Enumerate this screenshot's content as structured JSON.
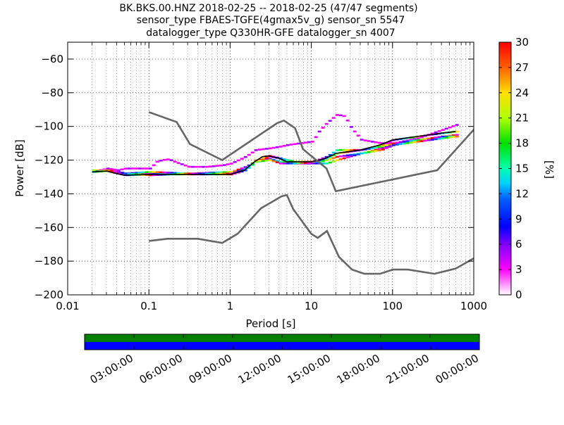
{
  "title_lines": [
    "BK.BKS.00.HNZ   2018-02-25 -- 2018-02-25  (47/47 segments)",
    "sensor_type FBAES-TGFE(4gmax5v_g) sensor_sn 5547",
    "datalogger_type Q330HR-GFE datalogger_sn 4007"
  ],
  "chart_data": [
    {
      "type": "heatmap",
      "title": "BK.BKS.00.HNZ   2018-02-25 -- 2018-02-25  (47/47 segments)",
      "xlabel": "Period [s]",
      "ylabel": "Power [dB]",
      "xscale": "log",
      "xlim": [
        0.01,
        1000
      ],
      "ylim": [
        -200,
        -50
      ],
      "x_ticks": [
        "0.01",
        "0.1",
        "1",
        "10",
        "100",
        "1000"
      ],
      "x_tick_values": [
        0.01,
        0.1,
        1,
        10,
        100,
        1000
      ],
      "y_ticks": [
        "−60",
        "−80",
        "−100",
        "−120",
        "−140",
        "−160",
        "−180",
        "−200"
      ],
      "y_tick_values": [
        -60,
        -80,
        -100,
        -120,
        -140,
        -160,
        -180,
        -200
      ],
      "grid": true,
      "colorbar": {
        "label": "[%]",
        "range": [
          0,
          30
        ],
        "ticks": [
          "0",
          "3",
          "6",
          "9",
          "12",
          "15",
          "18",
          "21",
          "24",
          "27",
          "30"
        ],
        "tick_values": [
          0,
          3,
          6,
          9,
          12,
          15,
          18,
          21,
          24,
          27,
          30
        ]
      },
      "noise_models": [
        {
          "points": [
            [
              0.1,
              -91.5
            ],
            [
              0.22,
              -97.4
            ],
            [
              0.32,
              -110.5
            ],
            [
              0.8,
              -120
            ],
            [
              3.8,
              -98
            ],
            [
              4.6,
              -96.5
            ],
            [
              6.3,
              -101
            ],
            [
              7.9,
              -113.5
            ],
            [
              15.4,
              -125
            ],
            [
              20,
              -138.5
            ],
            [
              354.8,
              -126
            ],
            [
              10000,
              -48.5
            ]
          ]
        },
        {
          "points": [
            [
              0.1,
              -168
            ],
            [
              0.17,
              -166.7
            ],
            [
              0.4,
              -166.7
            ],
            [
              0.8,
              -169.2
            ],
            [
              1.24,
              -163.7
            ],
            [
              2.4,
              -148.6
            ],
            [
              4.3,
              -141.5
            ],
            [
              5,
              -140.7
            ],
            [
              6,
              -149.2
            ],
            [
              10,
              -163.8
            ],
            [
              12,
              -166.2
            ],
            [
              15.6,
              -162.1
            ],
            [
              21.9,
              -177.5
            ],
            [
              31.6,
              -185
            ],
            [
              45,
              -187.5
            ],
            [
              70,
              -187.5
            ],
            [
              101,
              -185
            ],
            [
              154,
              -185
            ],
            [
              328,
              -187.5
            ],
            [
              600,
              -184.4
            ],
            [
              1000,
              -178.3
            ]
          ]
        }
      ],
      "psd_traces": [
        {
          "points": [
            [
              0.02,
              -127
            ],
            [
              0.03,
              -126.5
            ],
            [
              0.04,
              -128
            ],
            [
              0.05,
              -129
            ],
            [
              0.1,
              -128.5
            ],
            [
              0.3,
              -128.5
            ],
            [
              1,
              -128.5
            ],
            [
              1.5,
              -126
            ],
            [
              2,
              -121
            ],
            [
              2.5,
              -118
            ],
            [
              3,
              -117.5
            ],
            [
              4,
              -119
            ],
            [
              5,
              -121
            ],
            [
              7,
              -121
            ],
            [
              10,
              -121
            ],
            [
              15,
              -119
            ],
            [
              20,
              -116
            ],
            [
              40,
              -114
            ],
            [
              70,
              -111
            ],
            [
              100,
              -108
            ],
            [
              200,
              -106
            ],
            [
              400,
              -104
            ],
            [
              600,
              -103
            ]
          ]
        },
        {
          "points": [
            [
              0.02,
              -126
            ],
            [
              0.03,
              -126
            ],
            [
              0.04,
              -127
            ],
            [
              0.05,
              -128
            ],
            [
              0.1,
              -128
            ],
            [
              0.3,
              -128
            ],
            [
              1,
              -127.5
            ],
            [
              1.5,
              -124.5
            ],
            [
              2,
              -120
            ],
            [
              3,
              -119.5
            ],
            [
              4,
              -121
            ],
            [
              6,
              -122
            ],
            [
              10,
              -122
            ],
            [
              15,
              -120
            ],
            [
              20,
              -118
            ],
            [
              40,
              -116
            ],
            [
              70,
              -113
            ],
            [
              100,
              -110
            ],
            [
              200,
              -108
            ],
            [
              400,
              -106
            ],
            [
              600,
              -105
            ]
          ]
        },
        {
          "points": [
            [
              0.02,
              -127
            ],
            [
              0.03,
              -125
            ],
            [
              0.04,
              -126
            ],
            [
              0.05,
              -125
            ],
            [
              0.1,
              -125
            ],
            [
              0.12,
              -121
            ],
            [
              0.14,
              -120
            ],
            [
              0.17,
              -119.5
            ],
            [
              0.2,
              -121
            ],
            [
              0.3,
              -124
            ],
            [
              0.5,
              -124
            ],
            [
              0.8,
              -123
            ],
            [
              1,
              -122
            ],
            [
              1.5,
              -118
            ],
            [
              2,
              -114
            ],
            [
              3,
              -113
            ],
            [
              4,
              -112
            ],
            [
              5,
              -111
            ],
            [
              7,
              -110
            ],
            [
              10,
              -109
            ],
            [
              12,
              -103
            ],
            [
              15,
              -98
            ],
            [
              20,
              -93
            ],
            [
              25,
              -94
            ],
            [
              30,
              -101
            ],
            [
              40,
              -108
            ],
            [
              70,
              -110
            ],
            [
              100,
              -110
            ],
            [
              200,
              -107
            ],
            [
              400,
              -102
            ],
            [
              600,
              -99
            ]
          ]
        },
        {
          "points": [
            [
              0.02,
              -127
            ],
            [
              0.03,
              -126
            ],
            [
              0.04,
              -127
            ],
            [
              0.05,
              -128
            ],
            [
              0.1,
              -127
            ],
            [
              0.3,
              -128
            ],
            [
              1,
              -127
            ],
            [
              1.5,
              -124
            ],
            [
              2,
              -121
            ],
            [
              3,
              -120
            ],
            [
              4,
              -122
            ],
            [
              6,
              -122
            ],
            [
              10,
              -121
            ],
            [
              15,
              -118
            ],
            [
              20,
              -114
            ],
            [
              40,
              -114
            ],
            [
              70,
              -112
            ],
            [
              100,
              -110
            ],
            [
              200,
              -108
            ],
            [
              400,
              -106
            ],
            [
              600,
              -106
            ]
          ]
        },
        {
          "points": [
            [
              0.02,
              -127
            ],
            [
              0.03,
              -126
            ],
            [
              0.04,
              -127
            ],
            [
              0.05,
              -128
            ],
            [
              0.1,
              -129
            ],
            [
              0.3,
              -128
            ],
            [
              1,
              -128
            ],
            [
              1.5,
              -125
            ],
            [
              2,
              -121
            ],
            [
              3,
              -118
            ],
            [
              4,
              -119
            ],
            [
              6,
              -121
            ],
            [
              10,
              -122
            ],
            [
              15,
              -122
            ],
            [
              20,
              -120
            ],
            [
              40,
              -116
            ],
            [
              70,
              -114
            ],
            [
              100,
              -111
            ],
            [
              200,
              -109
            ],
            [
              400,
              -107
            ],
            [
              600,
              -106
            ]
          ]
        }
      ]
    },
    {
      "type": "timeline",
      "coverage_rows": [
        {
          "color": "#008000",
          "start": 0,
          "end": 1
        },
        {
          "color": "#0000ff",
          "start": 0,
          "end": 1
        }
      ],
      "x_ticks": [
        "03:00:00",
        "06:00:00",
        "09:00:00",
        "12:00:00",
        "15:00:00",
        "18:00:00",
        "21:00:00",
        "00:00:00"
      ],
      "x_tick_values": [
        3,
        6,
        9,
        12,
        15,
        18,
        21,
        24
      ],
      "xlim": [
        0,
        24
      ]
    }
  ]
}
